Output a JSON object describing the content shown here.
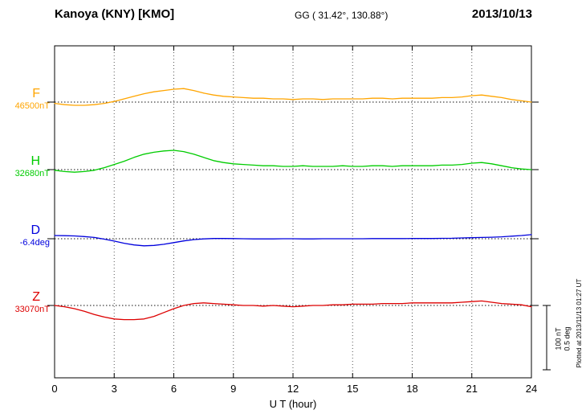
{
  "header": {
    "station": "Kanoya (KNY)  [KMO]",
    "coords": "GG ( 31.42°, 130.88°)",
    "date": "2013/10/13"
  },
  "axis": {
    "xlabel": "U T (hour)",
    "ticks": [
      0,
      3,
      6,
      9,
      12,
      15,
      18,
      21,
      24
    ]
  },
  "scale_bar": {
    "nt_label": "100 nT",
    "deg_label": "0.5 deg",
    "nt_value": 100,
    "deg_value": 0.5
  },
  "plotted_note": "Plotted at 2013/11/13 01:27 UT",
  "colors": {
    "F": "#FFA500",
    "H": "#00CC00",
    "D": "#0000DD",
    "Z": "#DD0000"
  },
  "chart_data": {
    "type": "line",
    "title": "Kanoya (KNY) [KMO] magnetogram 2013/10/13",
    "xlabel": "U T (hour)",
    "xlim": [
      0,
      24
    ],
    "x_ticks": [
      0,
      3,
      6,
      9,
      12,
      15,
      18,
      21,
      24
    ],
    "grid": "vertical-dotted-every-3h",
    "x_hours": [
      0,
      0.5,
      1,
      1.5,
      2,
      2.5,
      3,
      3.5,
      4,
      4.5,
      5,
      5.5,
      6,
      6.5,
      7,
      7.5,
      8,
      8.5,
      9,
      9.5,
      10,
      10.5,
      11,
      11.5,
      12,
      12.5,
      13,
      13.5,
      14,
      14.5,
      15,
      15.5,
      16,
      16.5,
      17,
      17.5,
      18,
      18.5,
      19,
      19.5,
      20,
      20.5,
      21,
      21.5,
      22,
      22.5,
      23,
      23.5,
      24
    ],
    "series": [
      {
        "name": "F",
        "unit": "nT",
        "baseline": 46500,
        "baseline_label": "46500nT",
        "color": "#FFA500",
        "values": [
          46498,
          46496,
          46495,
          46495,
          46496,
          46498,
          46501,
          46505,
          46509,
          46513,
          46516,
          46518,
          46520,
          46521,
          46518,
          46514,
          46511,
          46509,
          46508,
          46507,
          46506,
          46506,
          46505,
          46505,
          46504,
          46505,
          46505,
          46504,
          46505,
          46505,
          46505,
          46505,
          46506,
          46506,
          46505,
          46506,
          46506,
          46506,
          46506,
          46507,
          46507,
          46508,
          46510,
          46511,
          46509,
          46507,
          46504,
          46502,
          46500
        ]
      },
      {
        "name": "H",
        "unit": "nT",
        "baseline": 32680,
        "baseline_label": "32680nT",
        "color": "#00CC00",
        "values": [
          32679,
          32677,
          32676,
          32677,
          32679,
          32683,
          32688,
          32693,
          32699,
          32704,
          32707,
          32709,
          32710,
          32708,
          32704,
          32699,
          32694,
          32691,
          32689,
          32688,
          32687,
          32686,
          32686,
          32685,
          32685,
          32686,
          32685,
          32685,
          32685,
          32686,
          32685,
          32685,
          32686,
          32686,
          32685,
          32686,
          32686,
          32686,
          32686,
          32687,
          32687,
          32688,
          32690,
          32691,
          32689,
          32686,
          32683,
          32681,
          32680
        ]
      },
      {
        "name": "D",
        "unit": "deg",
        "baseline": -6.4,
        "baseline_label": "-6.4deg",
        "color": "#0000DD",
        "values": [
          -6.375,
          -6.376,
          -6.378,
          -6.383,
          -6.39,
          -6.403,
          -6.418,
          -6.435,
          -6.448,
          -6.455,
          -6.452,
          -6.443,
          -6.43,
          -6.417,
          -6.407,
          -6.401,
          -6.398,
          -6.398,
          -6.399,
          -6.4,
          -6.401,
          -6.401,
          -6.401,
          -6.4,
          -6.4,
          -6.401,
          -6.401,
          -6.4,
          -6.4,
          -6.4,
          -6.4,
          -6.4,
          -6.399,
          -6.399,
          -6.399,
          -6.399,
          -6.398,
          -6.398,
          -6.398,
          -6.397,
          -6.396,
          -6.394,
          -6.392,
          -6.39,
          -6.388,
          -6.385,
          -6.38,
          -6.375,
          -6.368
        ]
      },
      {
        "name": "Z",
        "unit": "nT",
        "baseline": 33070,
        "baseline_label": "33070nT",
        "color": "#DD0000",
        "values": [
          33070,
          33068,
          33065,
          33061,
          33056,
          33052,
          33049,
          33048,
          33048,
          33049,
          33053,
          33059,
          33065,
          33070,
          33073,
          33074,
          33073,
          33072,
          33071,
          33070,
          33070,
          33069,
          33070,
          33069,
          33068,
          33069,
          33070,
          33070,
          33071,
          33071,
          33072,
          33072,
          33072,
          33073,
          33073,
          33073,
          33074,
          33074,
          33074,
          33074,
          33074,
          33075,
          33076,
          33077,
          33075,
          33073,
          33072,
          33071,
          33068
        ]
      }
    ],
    "scale": {
      "nT_per_bar": 100,
      "deg_per_bar": 0.5
    }
  }
}
